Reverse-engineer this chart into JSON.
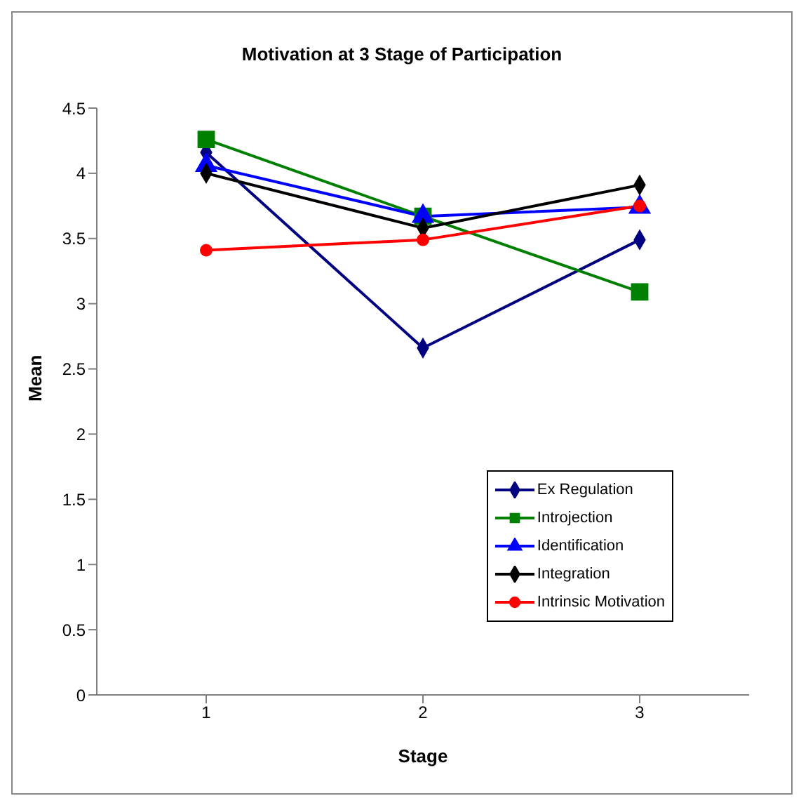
{
  "chart_data": {
    "type": "line",
    "title": "Motivation at 3 Stage of Participation",
    "xlabel": "Stage",
    "ylabel": "Mean",
    "categories": [
      "1",
      "2",
      "3"
    ],
    "series": [
      {
        "name": "Ex Regulation",
        "color": "#000080",
        "marker": "diamond",
        "values": [
          4.16,
          2.66,
          3.49
        ]
      },
      {
        "name": "Introjection",
        "color": "#008000",
        "marker": "square",
        "values": [
          4.26,
          3.67,
          3.09
        ]
      },
      {
        "name": "Identification",
        "color": "#0000ff",
        "marker": "triangle",
        "values": [
          4.06,
          3.67,
          3.74
        ]
      },
      {
        "name": "Integration",
        "color": "#000000",
        "marker": "diamond",
        "values": [
          4.0,
          3.58,
          3.91
        ]
      },
      {
        "name": "Intrinsic Motivation",
        "color": "#ff0000",
        "marker": "circle",
        "values": [
          3.41,
          3.49,
          3.75
        ]
      }
    ],
    "ylim": [
      0,
      4.5
    ],
    "yticks": [
      0,
      0.5,
      1,
      1.5,
      2,
      2.5,
      3,
      3.5,
      4,
      4.5
    ],
    "grid": false,
    "legend": "right",
    "line_style": "solid"
  }
}
